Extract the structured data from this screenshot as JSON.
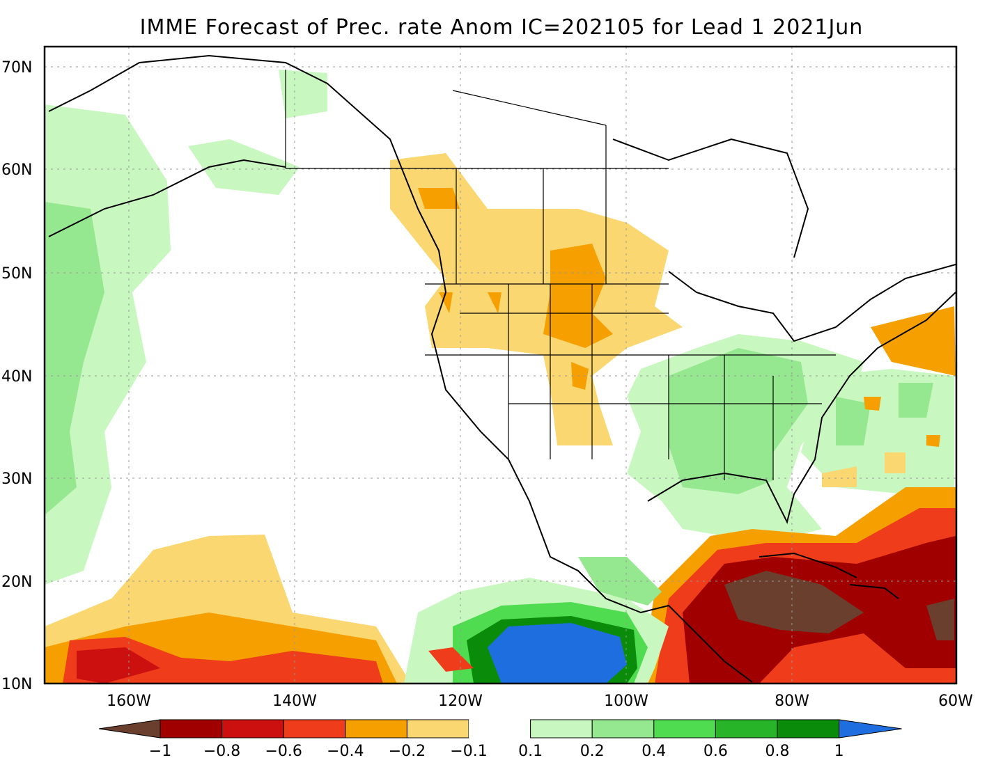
{
  "title": "IMME Forecast of Prec. rate Anom IC=202105 for Lead 1 2021Jun",
  "map": {
    "lat_labels": [
      "70N",
      "60N",
      "50N",
      "40N",
      "30N",
      "20N",
      "10N"
    ],
    "lon_labels": [
      "160W",
      "140W",
      "120W",
      "100W",
      "80W",
      "60W"
    ],
    "lat_range": [
      10,
      72
    ],
    "lon_range": [
      -170,
      -60
    ]
  },
  "legend": {
    "labels": [
      "-1",
      "-0.8",
      "-0.6",
      "-0.4",
      "-0.2",
      "-0.1",
      "0.1",
      "0.2",
      "0.4",
      "0.6",
      "0.8",
      "1"
    ],
    "colors": [
      "#6b3f2e",
      "#a00000",
      "#cc1010",
      "#ef3c1a",
      "#f5a000",
      "#fad770",
      "#ffffff",
      "#c8f7c0",
      "#96e890",
      "#50dc50",
      "#28b428",
      "#0a8c0a",
      "#1e6ee0"
    ]
  }
}
